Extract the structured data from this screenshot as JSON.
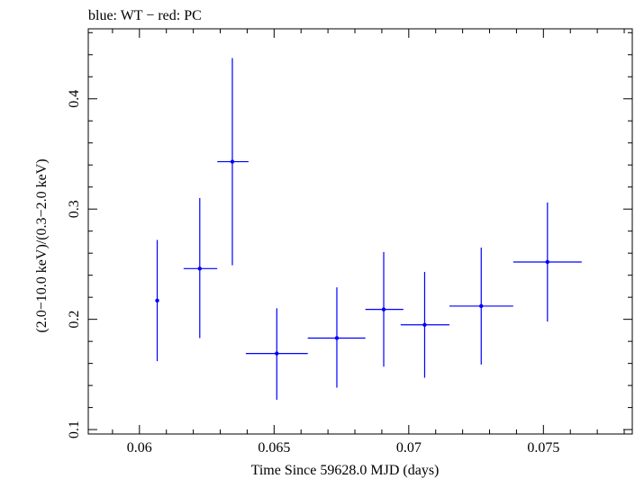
{
  "chart_data": {
    "type": "scatter",
    "title": "blue: WT − red: PC",
    "xlabel": "Time Since 59628.0 MJD (days)",
    "ylabel": "(2.0−10.0 keV)/(0.3−2.0 keV)",
    "xlim": [
      0.0581,
      0.0783
    ],
    "ylim": [
      0.096,
      0.4635
    ],
    "xticks": [
      0.06,
      0.065,
      0.07,
      0.075
    ],
    "xtick_labels": [
      "0.06",
      "0.065",
      "0.07",
      "0.075"
    ],
    "yticks": [
      0.1,
      0.2,
      0.3,
      0.4
    ],
    "ytick_labels": [
      "0.1",
      "0.2",
      "0.3",
      "0.4"
    ],
    "grid": false,
    "series": [
      {
        "color": "#0000ff",
        "points": [
          {
            "x": 0.06066,
            "y": 0.217,
            "xerr_lo": 0.06164,
            "xerr_hi": 0.06164,
            "y_lo": 0.162,
            "y_hi": 0.272
          },
          {
            "x": 0.06224,
            "y": 0.246,
            "xerr_lo": 0.06164,
            "xerr_hi": 0.06289,
            "y_lo": 0.183,
            "y_hi": 0.31
          },
          {
            "x": 0.06345,
            "y": 0.343,
            "xerr_lo": 0.06289,
            "xerr_hi": 0.06405,
            "y_lo": 0.249,
            "y_hi": 0.437
          },
          {
            "x": 0.0651,
            "y": 0.169,
            "xerr_lo": 0.06395,
            "xerr_hi": 0.06625,
            "y_lo": 0.127,
            "y_hi": 0.21
          },
          {
            "x": 0.06733,
            "y": 0.183,
            "xerr_lo": 0.06625,
            "xerr_hi": 0.06839,
            "y_lo": 0.138,
            "y_hi": 0.229
          },
          {
            "x": 0.06907,
            "y": 0.209,
            "xerr_lo": 0.06839,
            "xerr_hi": 0.0698,
            "y_lo": 0.157,
            "y_hi": 0.261
          },
          {
            "x": 0.07059,
            "y": 0.195,
            "xerr_lo": 0.0697,
            "xerr_hi": 0.07151,
            "y_lo": 0.147,
            "y_hi": 0.243
          },
          {
            "x": 0.07269,
            "y": 0.212,
            "xerr_lo": 0.07151,
            "xerr_hi": 0.07388,
            "y_lo": 0.159,
            "y_hi": 0.265
          },
          {
            "x": 0.07515,
            "y": 0.252,
            "xerr_lo": 0.07388,
            "xerr_hi": 0.07642,
            "y_lo": 0.198,
            "y_hi": 0.306
          }
        ]
      }
    ]
  }
}
